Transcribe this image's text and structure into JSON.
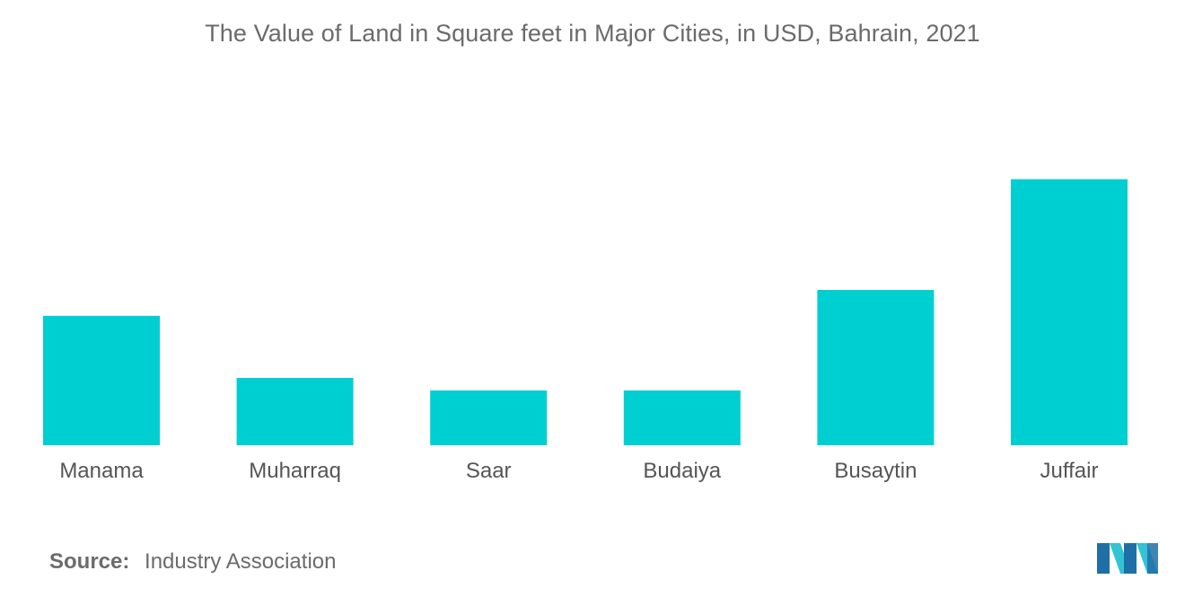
{
  "chart_data": {
    "type": "bar",
    "title": "The Value of Land in Square feet in Major Cities, in USD, Bahrain, 2021",
    "categories": [
      "Manama",
      "Muharraq",
      "Saar",
      "Budaiya",
      "Busaytin",
      "Juffair"
    ],
    "values": [
      125,
      65,
      53,
      53,
      150,
      257
    ],
    "ylim": [
      0,
      300
    ],
    "grid": false,
    "legend": "none",
    "bar_color": "#00cfd1"
  },
  "source": {
    "label": "Source:",
    "text": "Industry Association"
  },
  "logo": {
    "icon": "mordor-intelligence-logo",
    "colors": [
      "#1f6fa7",
      "#33c3d4"
    ]
  }
}
